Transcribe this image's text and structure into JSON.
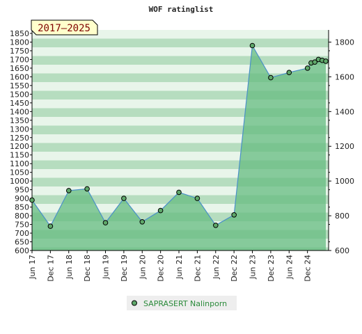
{
  "chart_data": {
    "type": "area",
    "title": "WOF ratinglist",
    "range_label": "2017–2025",
    "colors": {
      "area": "#66bb80",
      "line": "#4a90c8",
      "marker": "#5fa86a",
      "stripe_dark": "#b6ddbf",
      "stripe_light": "#e8f5ea",
      "legend_text": "#2a8a3a",
      "range_bg": "#ffffcc",
      "range_text": "#800000"
    },
    "x_tick_labels": [
      "Jun 17",
      "Dec 17",
      "Jun 18",
      "Dec 18",
      "Jun 19",
      "Dec 19",
      "Jun 20",
      "Dec 20",
      "Jun 21",
      "Dec 21",
      "Jun 22",
      "Dec 22",
      "Jun 23",
      "Dec 23",
      "Jun 24",
      "Dec 24"
    ],
    "y_left_ticks": [
      600,
      650,
      700,
      750,
      800,
      850,
      900,
      950,
      1000,
      1050,
      1100,
      1150,
      1200,
      1250,
      1300,
      1350,
      1400,
      1450,
      1500,
      1550,
      1600,
      1650,
      1700,
      1750,
      1800,
      1850
    ],
    "y_right_ticks": [
      600,
      800,
      1000,
      1200,
      1400,
      1600,
      1800
    ],
    "ylim": [
      600,
      1850
    ],
    "xlim": [
      0,
      16.15
    ],
    "series": [
      {
        "name": "SAPRASERT Nalinporn",
        "points": [
          {
            "x": 0,
            "y": 890
          },
          {
            "x": 1,
            "y": 740
          },
          {
            "x": 2,
            "y": 945
          },
          {
            "x": 3,
            "y": 955
          },
          {
            "x": 4,
            "y": 760
          },
          {
            "x": 5,
            "y": 900
          },
          {
            "x": 6,
            "y": 765
          },
          {
            "x": 7,
            "y": 830
          },
          {
            "x": 8,
            "y": 935
          },
          {
            "x": 9,
            "y": 900
          },
          {
            "x": 10,
            "y": 745
          },
          {
            "x": 11,
            "y": 805
          },
          {
            "x": 12,
            "y": 1780
          },
          {
            "x": 13,
            "y": 1595
          },
          {
            "x": 14,
            "y": 1625
          },
          {
            "x": 15,
            "y": 1650
          },
          {
            "x": 15.2,
            "y": 1680
          },
          {
            "x": 15.4,
            "y": 1685
          },
          {
            "x": 15.6,
            "y": 1700
          },
          {
            "x": 15.8,
            "y": 1695
          },
          {
            "x": 16,
            "y": 1690
          }
        ]
      }
    ]
  }
}
